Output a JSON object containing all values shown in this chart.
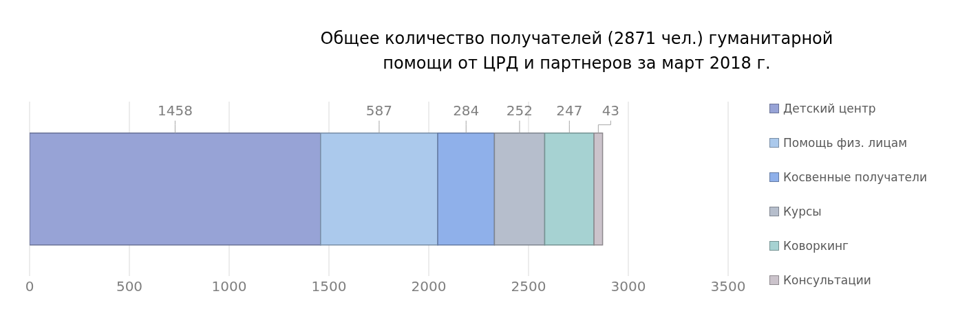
{
  "chart_data": {
    "type": "bar",
    "orientation": "horizontal",
    "stacked": true,
    "title": "Общее количество получателей  (2871 чел.) гуманитарной\nпомощи от ЦРД и партнеров за март 2018 г.",
    "categories": [
      null
    ],
    "series": [
      {
        "name": "Детский центр",
        "color": "#97a3d6",
        "values": [
          1458
        ]
      },
      {
        "name": "Помощь физ. лицам",
        "color": "#abc9ec",
        "values": [
          587
        ]
      },
      {
        "name": "Косвенные получатели",
        "color": "#8fb0ea",
        "values": [
          284
        ]
      },
      {
        "name": "Курсы",
        "color": "#b6becc",
        "values": [
          252
        ]
      },
      {
        "name": "Коворкинг",
        "color": "#a6d2d2",
        "values": [
          247
        ]
      },
      {
        "name": "Консультации",
        "color": "#cbc3cb",
        "values": [
          43
        ]
      }
    ],
    "xlim": [
      0,
      3500
    ],
    "xticks": [
      0,
      500,
      1000,
      1500,
      2000,
      2500,
      3000,
      3500
    ],
    "grid": "x",
    "legend": "right",
    "data_labels": true,
    "tick_labels": "x"
  }
}
